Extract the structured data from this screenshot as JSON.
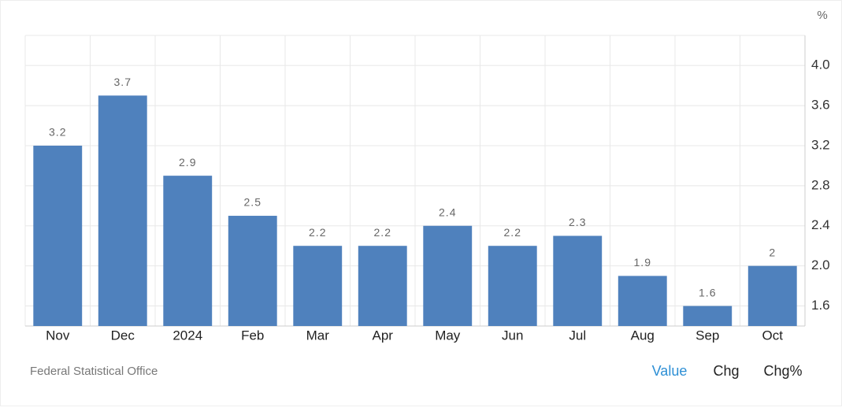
{
  "chart_data": {
    "type": "bar",
    "unit": "%",
    "categories": [
      "Nov",
      "Dec",
      "2024",
      "Feb",
      "Mar",
      "Apr",
      "May",
      "Jun",
      "Jul",
      "Aug",
      "Sep",
      "Oct"
    ],
    "values": [
      3.2,
      3.7,
      2.9,
      2.5,
      2.2,
      2.2,
      2.4,
      2.2,
      2.3,
      1.9,
      1.6,
      2
    ],
    "color": "#4f81bd",
    "ylim": [
      1.4,
      4.3
    ],
    "yticks": [
      1.6,
      {
        "value": 2,
        "label": "2.0"
      },
      2.4,
      2.8,
      3.2,
      3.6,
      {
        "value": 4,
        "label": "4.0"
      }
    ],
    "grid": true,
    "source": "Federal Statistical Office",
    "buttons": [
      "Value",
      "Chg",
      "Chg%"
    ]
  }
}
